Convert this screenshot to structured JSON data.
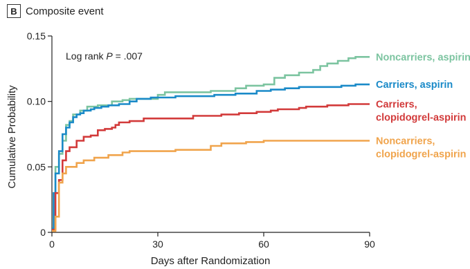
{
  "panel": {
    "letter": "B",
    "title": "Composite event"
  },
  "chart_data": {
    "type": "line",
    "step": true,
    "title": "",
    "xlabel": "Days after Randomization",
    "ylabel": "Cumulative Probability",
    "xlim": [
      0,
      90
    ],
    "ylim": [
      0,
      0.15
    ],
    "xticks": [
      0,
      30,
      60,
      90
    ],
    "xtick_labels": [
      "0",
      "30",
      "60",
      "90"
    ],
    "yticks": [
      0,
      0.05,
      0.1,
      0.15
    ],
    "ytick_labels": [
      "0",
      "0.05",
      "0.10",
      "0.15"
    ],
    "grid": false,
    "annotation": {
      "prefix": "Log rank ",
      "italic": "P",
      "suffix": " = .007"
    },
    "series": [
      {
        "name": "Noncarriers, aspirin",
        "label_lines": [
          "Noncarriers, aspirin"
        ],
        "color": "#7cc4a0",
        "points": [
          [
            0,
            0.003
          ],
          [
            0.5,
            0.03
          ],
          [
            1,
            0.05
          ],
          [
            2,
            0.06
          ],
          [
            3,
            0.07
          ],
          [
            4,
            0.082
          ],
          [
            5,
            0.085
          ],
          [
            6,
            0.09
          ],
          [
            8,
            0.093
          ],
          [
            10,
            0.096
          ],
          [
            13,
            0.097
          ],
          [
            17,
            0.1
          ],
          [
            20,
            0.101
          ],
          [
            22,
            0.102
          ],
          [
            30,
            0.105
          ],
          [
            32,
            0.107
          ],
          [
            45,
            0.108
          ],
          [
            52,
            0.11
          ],
          [
            55,
            0.112
          ],
          [
            60,
            0.113
          ],
          [
            63,
            0.118
          ],
          [
            66,
            0.12
          ],
          [
            70,
            0.122
          ],
          [
            74,
            0.124
          ],
          [
            76,
            0.127
          ],
          [
            78,
            0.129
          ],
          [
            81,
            0.131
          ],
          [
            84,
            0.133
          ],
          [
            86,
            0.134
          ],
          [
            90,
            0.134
          ]
        ]
      },
      {
        "name": "Carriers, aspirin",
        "label_lines": [
          "Carriers, aspirin"
        ],
        "color": "#1a8ac8",
        "points": [
          [
            0,
            0.003
          ],
          [
            0.5,
            0.03
          ],
          [
            1,
            0.045
          ],
          [
            2,
            0.062
          ],
          [
            3,
            0.075
          ],
          [
            4,
            0.08
          ],
          [
            5,
            0.084
          ],
          [
            6,
            0.088
          ],
          [
            7,
            0.09
          ],
          [
            8,
            0.091
          ],
          [
            9,
            0.093
          ],
          [
            11,
            0.094
          ],
          [
            12,
            0.095
          ],
          [
            14,
            0.096
          ],
          [
            16,
            0.097
          ],
          [
            19,
            0.098
          ],
          [
            22,
            0.1
          ],
          [
            24,
            0.102
          ],
          [
            28,
            0.103
          ],
          [
            35,
            0.104
          ],
          [
            46,
            0.105
          ],
          [
            52,
            0.106
          ],
          [
            58,
            0.108
          ],
          [
            62,
            0.109
          ],
          [
            66,
            0.11
          ],
          [
            70,
            0.111
          ],
          [
            82,
            0.112
          ],
          [
            86,
            0.113
          ],
          [
            90,
            0.113
          ]
        ]
      },
      {
        "name": "Carriers, clopidogrel-aspirin",
        "label_lines": [
          "Carriers,",
          "clopidogrel-aspirin"
        ],
        "color": "#d23a3a",
        "points": [
          [
            0,
            0.002
          ],
          [
            1,
            0.03
          ],
          [
            2,
            0.04
          ],
          [
            3,
            0.055
          ],
          [
            4,
            0.062
          ],
          [
            5,
            0.065
          ],
          [
            7,
            0.07
          ],
          [
            9,
            0.073
          ],
          [
            11,
            0.074
          ],
          [
            13,
            0.078
          ],
          [
            15,
            0.079
          ],
          [
            17,
            0.08
          ],
          [
            18,
            0.082
          ],
          [
            19,
            0.084
          ],
          [
            22,
            0.085
          ],
          [
            26,
            0.087
          ],
          [
            32,
            0.087
          ],
          [
            40,
            0.089
          ],
          [
            48,
            0.09
          ],
          [
            53,
            0.091
          ],
          [
            58,
            0.092
          ],
          [
            62,
            0.093
          ],
          [
            64,
            0.094
          ],
          [
            70,
            0.095
          ],
          [
            72,
            0.096
          ],
          [
            78,
            0.097
          ],
          [
            84,
            0.098
          ],
          [
            90,
            0.098
          ]
        ]
      },
      {
        "name": "Noncarriers, clopidogrel-aspirin",
        "label_lines": [
          "Noncarriers,",
          "clopidogrel-aspirin"
        ],
        "color": "#f0a44c",
        "points": [
          [
            0,
            0.001
          ],
          [
            1,
            0.012
          ],
          [
            2,
            0.038
          ],
          [
            3,
            0.045
          ],
          [
            4,
            0.05
          ],
          [
            7,
            0.053
          ],
          [
            9,
            0.055
          ],
          [
            12,
            0.057
          ],
          [
            16,
            0.059
          ],
          [
            20,
            0.061
          ],
          [
            22,
            0.062
          ],
          [
            35,
            0.063
          ],
          [
            45,
            0.066
          ],
          [
            48,
            0.068
          ],
          [
            55,
            0.069
          ],
          [
            60,
            0.07
          ],
          [
            90,
            0.07
          ]
        ]
      }
    ]
  }
}
